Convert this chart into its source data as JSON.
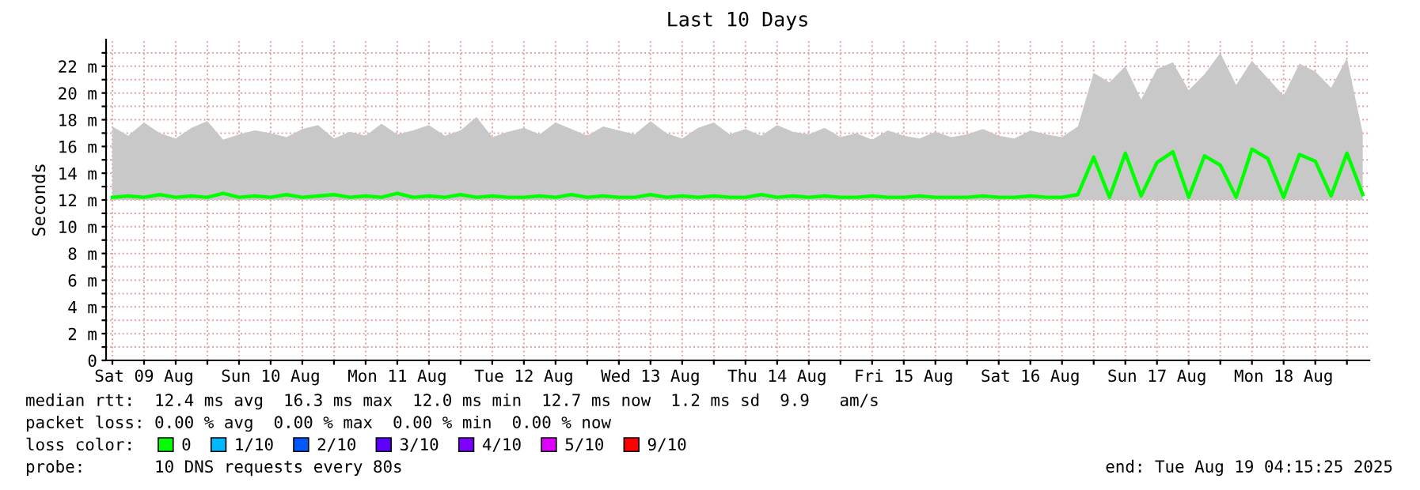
{
  "chart_data": {
    "type": "line",
    "title": "Last 10 Days",
    "ylabel": "Seconds",
    "x": [
      "2025-08-09T06:00",
      "2025-08-09T09:00",
      "2025-08-09T12:00",
      "2025-08-09T15:00",
      "2025-08-09T18:00",
      "2025-08-09T21:00",
      "2025-08-10T00:00",
      "2025-08-10T03:00",
      "2025-08-10T06:00",
      "2025-08-10T09:00",
      "2025-08-10T12:00",
      "2025-08-10T15:00",
      "2025-08-10T18:00",
      "2025-08-10T21:00",
      "2025-08-11T00:00",
      "2025-08-11T03:00",
      "2025-08-11T06:00",
      "2025-08-11T09:00",
      "2025-08-11T12:00",
      "2025-08-11T15:00",
      "2025-08-11T18:00",
      "2025-08-11T21:00",
      "2025-08-12T00:00",
      "2025-08-12T03:00",
      "2025-08-12T06:00",
      "2025-08-12T09:00",
      "2025-08-12T12:00",
      "2025-08-12T15:00",
      "2025-08-12T18:00",
      "2025-08-12T21:00",
      "2025-08-13T00:00",
      "2025-08-13T03:00",
      "2025-08-13T06:00",
      "2025-08-13T09:00",
      "2025-08-13T12:00",
      "2025-08-13T15:00",
      "2025-08-13T18:00",
      "2025-08-13T21:00",
      "2025-08-14T00:00",
      "2025-08-14T03:00",
      "2025-08-14T06:00",
      "2025-08-14T09:00",
      "2025-08-14T12:00",
      "2025-08-14T15:00",
      "2025-08-14T18:00",
      "2025-08-14T21:00",
      "2025-08-15T00:00",
      "2025-08-15T03:00",
      "2025-08-15T06:00",
      "2025-08-15T09:00",
      "2025-08-15T12:00",
      "2025-08-15T15:00",
      "2025-08-15T18:00",
      "2025-08-15T21:00",
      "2025-08-16T00:00",
      "2025-08-16T03:00",
      "2025-08-16T06:00",
      "2025-08-16T09:00",
      "2025-08-16T12:00",
      "2025-08-16T15:00",
      "2025-08-16T18:00",
      "2025-08-16T21:00",
      "2025-08-17T00:00",
      "2025-08-17T03:00",
      "2025-08-17T06:00",
      "2025-08-17T09:00",
      "2025-08-17T12:00",
      "2025-08-17T15:00",
      "2025-08-17T18:00",
      "2025-08-17T21:00",
      "2025-08-18T00:00",
      "2025-08-18T03:00",
      "2025-08-18T06:00",
      "2025-08-18T09:00",
      "2025-08-18T12:00",
      "2025-08-18T15:00",
      "2025-08-18T18:00",
      "2025-08-18T21:00",
      "2025-08-19T00:00",
      "2025-08-19T03:00"
    ],
    "series": [
      {
        "name": "0",
        "color": "#00ff00",
        "values": [
          12.2,
          12.3,
          12.2,
          12.4,
          12.2,
          12.3,
          12.2,
          12.5,
          12.2,
          12.3,
          12.2,
          12.4,
          12.2,
          12.3,
          12.4,
          12.2,
          12.3,
          12.2,
          12.5,
          12.2,
          12.3,
          12.2,
          12.4,
          12.2,
          12.3,
          12.2,
          12.2,
          12.3,
          12.2,
          12.4,
          12.2,
          12.3,
          12.2,
          12.2,
          12.4,
          12.2,
          12.3,
          12.2,
          12.3,
          12.2,
          12.2,
          12.4,
          12.2,
          12.3,
          12.2,
          12.3,
          12.2,
          12.2,
          12.3,
          12.2,
          12.2,
          12.3,
          12.2,
          12.2,
          12.2,
          12.3,
          12.2,
          12.2,
          12.3,
          12.2,
          12.2,
          12.4,
          15.2,
          12.2,
          15.5,
          12.3,
          14.8,
          15.6,
          12.2,
          15.3,
          14.6,
          12.2,
          15.8,
          15.1,
          12.2,
          15.4,
          14.9,
          12.3,
          15.5,
          12.4
        ],
        "lower": [
          12.0,
          12.0,
          12.0,
          12.0,
          12.0,
          12.0,
          12.0,
          12.0,
          12.0,
          12.0,
          12.0,
          12.0,
          12.0,
          12.0,
          12.0,
          12.0,
          12.0,
          12.0,
          12.0,
          12.0,
          12.0,
          12.0,
          12.0,
          12.0,
          12.0,
          12.0,
          12.0,
          12.0,
          12.0,
          12.0,
          12.0,
          12.0,
          12.0,
          12.0,
          12.0,
          12.0,
          12.0,
          12.0,
          12.0,
          12.0,
          12.0,
          12.0,
          12.0,
          12.0,
          12.0,
          12.0,
          12.0,
          12.0,
          12.0,
          12.0,
          12.0,
          12.0,
          12.0,
          12.0,
          12.0,
          12.0,
          12.0,
          12.0,
          12.0,
          12.0,
          12.0,
          12.0,
          12.0,
          12.0,
          12.0,
          12.0,
          12.0,
          12.0,
          12.0,
          12.0,
          12.0,
          12.0,
          12.0,
          12.0,
          12.0,
          12.0,
          12.0,
          12.0,
          12.0,
          12.0
        ],
        "upper": [
          17.5,
          16.8,
          17.8,
          17.0,
          16.6,
          17.4,
          17.9,
          16.5,
          16.9,
          17.2,
          17.0,
          16.7,
          17.3,
          17.6,
          16.6,
          17.1,
          16.8,
          17.7,
          16.9,
          17.2,
          17.6,
          16.8,
          17.2,
          18.2,
          16.7,
          17.1,
          17.4,
          16.9,
          17.8,
          17.3,
          16.8,
          17.5,
          17.2,
          16.9,
          17.9,
          17.0,
          16.6,
          17.4,
          17.8,
          16.9,
          17.3,
          16.8,
          17.6,
          17.1,
          16.9,
          17.4,
          16.7,
          17.0,
          16.5,
          17.2,
          16.8,
          16.6,
          17.1,
          16.7,
          16.9,
          17.3,
          16.8,
          16.6,
          17.2,
          16.9,
          16.7,
          17.5,
          21.5,
          20.8,
          22.0,
          19.5,
          21.8,
          22.3,
          20.2,
          21.4,
          23.0,
          20.6,
          22.4,
          21.1,
          19.8,
          22.2,
          21.6,
          20.4,
          22.6,
          17.0
        ]
      },
      {
        "name": "1/10",
        "color": "#00b8ff",
        "values": [
          null,
          null,
          null,
          null,
          null,
          null,
          null,
          null,
          null,
          null,
          null,
          null,
          null,
          null,
          null,
          null,
          null,
          null,
          null,
          null,
          null,
          null,
          null,
          null,
          null,
          null,
          null,
          null,
          null,
          null,
          null,
          null,
          null,
          null,
          null,
          null,
          null,
          null,
          null,
          null,
          null,
          null,
          null,
          null,
          null,
          null,
          null,
          null,
          null,
          null,
          null,
          null,
          null,
          null,
          null,
          null,
          null,
          null,
          null,
          null,
          null,
          null,
          null,
          null,
          null,
          null,
          null,
          null,
          null,
          null,
          null,
          null,
          null,
          null,
          null,
          null,
          null,
          null,
          null,
          null
        ]
      },
      {
        "name": "2/10",
        "color": "#0059ff",
        "values": [
          null,
          null,
          null,
          null,
          null,
          null,
          null,
          null,
          null,
          null,
          null,
          null,
          null,
          null,
          null,
          null,
          null,
          null,
          null,
          null,
          null,
          null,
          null,
          null,
          null,
          null,
          null,
          null,
          null,
          null,
          null,
          null,
          null,
          null,
          null,
          null,
          null,
          null,
          null,
          null,
          null,
          null,
          null,
          null,
          null,
          null,
          null,
          null,
          null,
          null,
          null,
          null,
          null,
          null,
          null,
          null,
          null,
          null,
          null,
          null,
          null,
          null,
          null,
          null,
          null,
          null,
          null,
          null,
          null,
          null,
          null,
          null,
          null,
          null,
          null,
          null,
          null,
          null,
          null,
          null
        ]
      },
      {
        "name": "3/10",
        "color": "#5e00ff",
        "values": [
          null,
          null,
          null,
          null,
          null,
          null,
          null,
          null,
          null,
          null,
          null,
          null,
          null,
          null,
          null,
          null,
          null,
          null,
          null,
          null,
          null,
          null,
          null,
          null,
          null,
          null,
          null,
          null,
          null,
          null,
          null,
          null,
          null,
          null,
          null,
          null,
          null,
          null,
          null,
          null,
          null,
          null,
          null,
          null,
          null,
          null,
          null,
          null,
          null,
          null,
          null,
          null,
          null,
          null,
          null,
          null,
          null,
          null,
          null,
          null,
          null,
          null,
          null,
          null,
          null,
          null,
          null,
          null,
          null,
          null,
          null,
          null,
          null,
          null,
          null,
          null,
          null,
          null,
          null,
          null
        ]
      },
      {
        "name": "4/10",
        "color": "#7e00ff",
        "values": [
          null,
          null,
          null,
          null,
          null,
          null,
          null,
          null,
          null,
          null,
          null,
          null,
          null,
          null,
          null,
          null,
          null,
          null,
          null,
          null,
          null,
          null,
          null,
          null,
          null,
          null,
          null,
          null,
          null,
          null,
          null,
          null,
          null,
          null,
          null,
          null,
          null,
          null,
          null,
          null,
          null,
          null,
          null,
          null,
          null,
          null,
          null,
          null,
          null,
          null,
          null,
          null,
          null,
          null,
          null,
          null,
          null,
          null,
          null,
          null,
          null,
          null,
          null,
          null,
          null,
          null,
          null,
          null,
          null,
          null,
          null,
          null,
          null,
          null,
          null,
          null,
          null,
          null,
          null,
          null
        ]
      },
      {
        "name": "5/10",
        "color": "#dd00ff",
        "values": [
          null,
          null,
          null,
          null,
          null,
          null,
          null,
          null,
          null,
          null,
          null,
          null,
          null,
          null,
          null,
          null,
          null,
          null,
          null,
          null,
          null,
          null,
          null,
          null,
          null,
          null,
          null,
          null,
          null,
          null,
          null,
          null,
          null,
          null,
          null,
          null,
          null,
          null,
          null,
          null,
          null,
          null,
          null,
          null,
          null,
          null,
          null,
          null,
          null,
          null,
          null,
          null,
          null,
          null,
          null,
          null,
          null,
          null,
          null,
          null,
          null,
          null,
          null,
          null,
          null,
          null,
          null,
          null,
          null,
          null,
          null,
          null,
          null,
          null,
          null,
          null,
          null,
          null,
          null,
          null
        ]
      },
      {
        "name": "9/10",
        "color": "#ff0000",
        "values": [
          null,
          null,
          null,
          null,
          null,
          null,
          null,
          null,
          null,
          null,
          null,
          null,
          null,
          null,
          null,
          null,
          null,
          null,
          null,
          null,
          null,
          null,
          null,
          null,
          null,
          null,
          null,
          null,
          null,
          null,
          null,
          null,
          null,
          null,
          null,
          null,
          null,
          null,
          null,
          null,
          null,
          null,
          null,
          null,
          null,
          null,
          null,
          null,
          null,
          null,
          null,
          null,
          null,
          null,
          null,
          null,
          null,
          null,
          null,
          null,
          null,
          null,
          null,
          null,
          null,
          null,
          null,
          null,
          null,
          null,
          null,
          null,
          null,
          null,
          null,
          null,
          null,
          null,
          null,
          null
        ]
      }
    ],
    "legend_title": "loss color:",
    "legend": "bottom",
    "grid": true,
    "marker": "none",
    "line_style": "solid",
    "xlim": [
      "2025-08-09T04:48",
      "2025-08-19T04:15"
    ],
    "xticks": [
      {
        "value": "2025-08-09T06:00",
        "label": null
      },
      {
        "value": "2025-08-09T12:00",
        "label": "Sat 09 Aug"
      },
      {
        "value": "2025-08-09T18:00",
        "label": null
      },
      {
        "value": "2025-08-10T00:00",
        "label": null
      },
      {
        "value": "2025-08-10T06:00",
        "label": null
      },
      {
        "value": "2025-08-10T12:00",
        "label": "Sun 10 Aug"
      },
      {
        "value": "2025-08-10T18:00",
        "label": null
      },
      {
        "value": "2025-08-11T00:00",
        "label": null
      },
      {
        "value": "2025-08-11T06:00",
        "label": null
      },
      {
        "value": "2025-08-11T12:00",
        "label": "Mon 11 Aug"
      },
      {
        "value": "2025-08-11T18:00",
        "label": null
      },
      {
        "value": "2025-08-12T00:00",
        "label": null
      },
      {
        "value": "2025-08-12T06:00",
        "label": null
      },
      {
        "value": "2025-08-12T12:00",
        "label": "Tue 12 Aug"
      },
      {
        "value": "2025-08-12T18:00",
        "label": null
      },
      {
        "value": "2025-08-13T00:00",
        "label": null
      },
      {
        "value": "2025-08-13T06:00",
        "label": null
      },
      {
        "value": "2025-08-13T12:00",
        "label": "Wed 13 Aug"
      },
      {
        "value": "2025-08-13T18:00",
        "label": null
      },
      {
        "value": "2025-08-14T00:00",
        "label": null
      },
      {
        "value": "2025-08-14T06:00",
        "label": null
      },
      {
        "value": "2025-08-14T12:00",
        "label": "Thu 14 Aug"
      },
      {
        "value": "2025-08-14T18:00",
        "label": null
      },
      {
        "value": "2025-08-15T00:00",
        "label": null
      },
      {
        "value": "2025-08-15T06:00",
        "label": null
      },
      {
        "value": "2025-08-15T12:00",
        "label": "Fri 15 Aug"
      },
      {
        "value": "2025-08-15T18:00",
        "label": null
      },
      {
        "value": "2025-08-16T00:00",
        "label": null
      },
      {
        "value": "2025-08-16T06:00",
        "label": null
      },
      {
        "value": "2025-08-16T12:00",
        "label": "Sat 16 Aug"
      },
      {
        "value": "2025-08-16T18:00",
        "label": null
      },
      {
        "value": "2025-08-17T00:00",
        "label": null
      },
      {
        "value": "2025-08-17T06:00",
        "label": null
      },
      {
        "value": "2025-08-17T12:00",
        "label": "Sun 17 Aug"
      },
      {
        "value": "2025-08-17T18:00",
        "label": null
      },
      {
        "value": "2025-08-18T00:00",
        "label": null
      },
      {
        "value": "2025-08-18T06:00",
        "label": null
      },
      {
        "value": "2025-08-18T12:00",
        "label": "Mon 18 Aug"
      },
      {
        "value": "2025-08-18T18:00",
        "label": null
      },
      {
        "value": "2025-08-19T00:00",
        "label": null
      }
    ],
    "ylim": [
      0,
      24
    ],
    "yticks": [
      0,
      {
        "value": 1,
        "label": null
      },
      {
        "value": 2,
        "label": "2 m"
      },
      {
        "value": 3,
        "label": null
      },
      {
        "value": 4,
        "label": "4 m"
      },
      {
        "value": 5,
        "label": null
      },
      {
        "value": 6,
        "label": "6 m"
      },
      {
        "value": 7,
        "label": null
      },
      {
        "value": 8,
        "label": "8 m"
      },
      {
        "value": 9,
        "label": null
      },
      {
        "value": 10,
        "label": "10 m"
      },
      {
        "value": 11,
        "label": null
      },
      {
        "value": 12,
        "label": "12 m"
      },
      {
        "value": 13,
        "label": null
      },
      {
        "value": 14,
        "label": "14 m"
      },
      {
        "value": 15,
        "label": null
      },
      {
        "value": 16,
        "label": "16 m"
      },
      {
        "value": 17,
        "label": null
      },
      {
        "value": 18,
        "label": "18 m"
      },
      {
        "value": 19,
        "label": null
      },
      {
        "value": 20,
        "label": "20 m"
      },
      {
        "value": 21,
        "label": null
      },
      {
        "value": 22,
        "label": "22 m"
      },
      {
        "value": 23,
        "label": null
      }
    ],
    "annotations": [
      "median rtt:  12.4 ms avg  16.3 ms max  12.0 ms min  12.7 ms now  1.2 ms sd  9.9   am/s",
      "packet loss: 0.00 % avg  0.00 % max  0.00 % min  0.00 % now",
      "probe:       10 DNS requests every 80s",
      "end: Tue Aug 19 04:15:25 2025"
    ]
  }
}
